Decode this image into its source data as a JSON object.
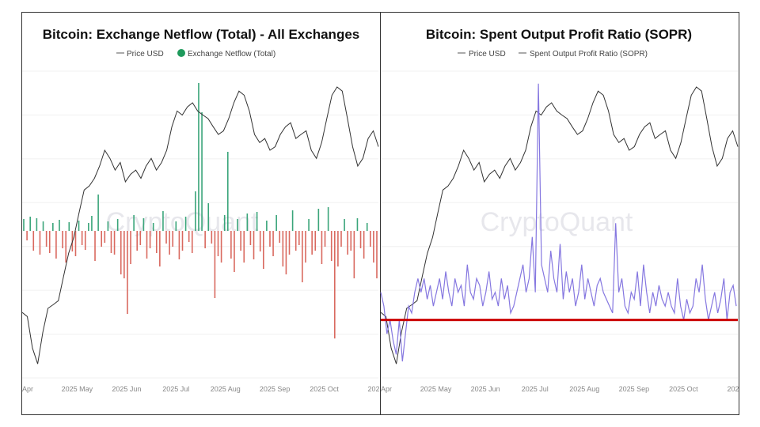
{
  "watermark": "CryptoQuant",
  "colors": {
    "price": "#333333",
    "inflow": "#3aa57a",
    "outflow": "#d9695f",
    "sopr": "#8577e0",
    "threshold": "#cc0000",
    "legend_dot": "#1f9a5c"
  },
  "chart_data": [
    {
      "type": "bar",
      "title": "Bitcoin: Exchange Netflow (Total) - All Exchanges",
      "legend": [
        "Price USD",
        "Exchange Netflow (Total)"
      ],
      "legend_placement": "top-center",
      "x_ticks": [
        "Apr",
        "2025 May",
        "2025 Jun",
        "2025 Jul",
        "2025 Aug",
        "2025 Sep",
        "2025 Oct",
        "202"
      ],
      "price_ylim": [
        73.6,
        126
      ],
      "netflow_ylim": [
        -18.6,
        20.2
      ],
      "price_usd_k": [
        84.8,
        84.1,
        78.7,
        76.0,
        81.4,
        85.5,
        86.1,
        86.8,
        90.9,
        94.9,
        97.6,
        101.7,
        105.7,
        106.4,
        107.7,
        109.8,
        112.5,
        111.1,
        109.1,
        110.4,
        107.1,
        108.4,
        109.1,
        107.7,
        109.8,
        111.1,
        109.1,
        110.4,
        112.5,
        116.5,
        119.2,
        118.5,
        119.9,
        120.6,
        119.2,
        118.5,
        117.9,
        116.5,
        115.2,
        115.8,
        117.9,
        120.6,
        122.6,
        121.9,
        119.2,
        115.2,
        113.8,
        114.5,
        112.5,
        113.1,
        115.2,
        116.5,
        117.2,
        114.5,
        115.2,
        115.8,
        112.5,
        111.1,
        113.8,
        117.9,
        121.9,
        123.3,
        122.6,
        117.9,
        113.1,
        109.8,
        111.1,
        114.5,
        115.8,
        113.1
      ],
      "netflow_k_btc": [
        1.5,
        -1.2,
        1.8,
        -2.5,
        1.6,
        -3.0,
        1.2,
        -2.0,
        -2.8,
        1.0,
        -3.5,
        1.4,
        -2.2,
        -4.0,
        1.1,
        -2.6,
        -3.2,
        1.3,
        -1.8,
        -2.4,
        1.0,
        1.9,
        -3.8,
        4.6,
        -2.0,
        -1.5,
        1.2,
        -2.8,
        -3.0,
        1.5,
        -5.5,
        -6.0,
        -10.5,
        -4.2,
        2.0,
        -2.5,
        -1.8,
        1.6,
        -3.5,
        -2.2,
        1.0,
        -2.8,
        -4.5,
        2.5,
        -1.6,
        -3.0,
        -2.0,
        1.2,
        -3.6,
        -2.5,
        1.8,
        -1.4,
        -2.8,
        5.0,
        18.7,
        15.0,
        -2.2,
        3.5,
        -1.6,
        -8.5,
        -3.2,
        -4.0,
        2.0,
        10.0,
        -3.5,
        -5.2,
        1.5,
        -2.5,
        -4.0,
        2.2,
        -1.8,
        -3.6,
        2.4,
        -2.6,
        -4.8,
        1.3,
        -2.0,
        -3.2,
        2.0,
        -1.5,
        -4.5,
        -5.5,
        -3.0,
        2.6,
        -2.5,
        -1.8,
        -6.5,
        -4.0,
        1.5,
        -3.0,
        -2.5,
        2.8,
        -4.2,
        -2.0,
        3.0,
        -3.8,
        -13.6,
        -4.5,
        -2.0,
        1.5,
        -3.0,
        -2.5,
        -6.0,
        1.6,
        -2.2,
        -3.5,
        1.0,
        -2.0,
        -4.0,
        -6.0
      ]
    },
    {
      "type": "line",
      "title": "Bitcoin: Spent Output Profit Ratio (SOPR)",
      "legend": [
        "Price USD",
        "Spent Output Profit Ratio (SOPR)"
      ],
      "legend_placement": "top-center",
      "x_ticks": [
        "Apr",
        "2025 May",
        "2025 Jun",
        "2025 Jul",
        "2025 Aug",
        "2025 Sep",
        "2025 Oct",
        "202"
      ],
      "price_ylim": [
        73.6,
        126
      ],
      "sopr_ylim": [
        0.958,
        1.18
      ],
      "threshold": 1.0,
      "sopr": [
        1.02,
        1.01,
        0.99,
        1.0,
        0.985,
        0.975,
        1.0,
        0.97,
        0.99,
        1.01,
        1.005,
        1.02,
        1.03,
        1.02,
        1.03,
        1.015,
        1.025,
        1.01,
        1.02,
        1.03,
        1.015,
        1.035,
        1.02,
        1.01,
        1.03,
        1.02,
        1.025,
        1.01,
        1.04,
        1.02,
        1.015,
        1.03,
        1.025,
        1.01,
        1.02,
        1.035,
        1.015,
        1.02,
        1.01,
        1.03,
        1.015,
        1.025,
        1.005,
        1.01,
        1.02,
        1.03,
        1.04,
        1.02,
        1.03,
        1.06,
        1.02,
        1.171,
        1.04,
        1.03,
        1.02,
        1.05,
        1.03,
        1.02,
        1.055,
        1.015,
        1.035,
        1.02,
        1.03,
        1.01,
        1.02,
        1.04,
        1.015,
        1.03,
        1.02,
        1.01,
        1.025,
        1.03,
        1.02,
        1.015,
        1.01,
        1.005,
        1.07,
        1.02,
        1.03,
        1.01,
        1.005,
        1.02,
        1.015,
        1.035,
        1.01,
        1.04,
        1.02,
        1.005,
        1.02,
        1.01,
        1.025,
        1.015,
        1.01,
        1.02,
        1.01,
        1.005,
        1.03,
        1.01,
        1.0,
        1.015,
        1.005,
        1.01,
        1.03,
        1.02,
        1.04,
        1.015,
        1.0,
        1.01,
        1.02,
        1.005,
        1.015,
        1.03,
        1.0,
        1.02,
        1.025,
        1.01
      ]
    }
  ]
}
